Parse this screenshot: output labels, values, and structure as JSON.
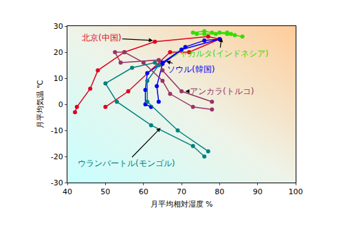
{
  "chart_data": {
    "type": "line",
    "x_label": "月平均相対湿度 %",
    "y_label": "月平均気温 ℃",
    "xlim": [
      40,
      100
    ],
    "xticks": [
      40,
      50,
      60,
      70,
      80,
      90,
      100
    ],
    "ylim": [
      -30,
      30
    ],
    "yticks": [
      -30,
      -20,
      -10,
      0,
      10,
      20,
      30
    ],
    "grid": false,
    "marker": "circle",
    "line_style": "solid",
    "series": [
      {
        "name": "北京(中国)",
        "color": "#e0001a",
        "x": [
          42,
          42.5,
          46,
          48,
          55,
          63,
          77,
          80,
          72,
          67,
          56,
          50
        ],
        "values": [
          -3,
          -1,
          6,
          13,
          20,
          24,
          26,
          25,
          20,
          20,
          5,
          -1
        ]
      },
      {
        "name": "ジャカルタ(インドネシア)",
        "color": "#33dd00",
        "x": [
          86,
          84,
          83,
          82,
          80,
          79,
          76,
          74,
          73,
          76,
          78,
          82
        ],
        "values": [
          26,
          26.5,
          27,
          27.5,
          27.5,
          27,
          27,
          27,
          27.5,
          28,
          27.5,
          27
        ]
      },
      {
        "name": "ソウル(韓国)",
        "color": "#0000ee",
        "x": [
          62,
          60.5,
          60.5,
          61,
          65,
          70,
          80,
          76,
          71,
          65,
          63.5,
          64
        ],
        "values": [
          -1,
          0,
          5.5,
          12,
          16,
          21,
          25,
          24.5,
          22,
          15.5,
          7,
          1
        ]
      },
      {
        "name": "アンカラ(トルコ)",
        "color": "#993366",
        "x": [
          78,
          73,
          67,
          65,
          60,
          55,
          52.5,
          54,
          64,
          65,
          70,
          78
        ],
        "values": [
          -2,
          -1,
          4,
          9,
          16,
          20,
          20,
          16,
          17,
          13,
          5,
          1
        ]
      },
      {
        "name": "ウランバートル(モンゴル)",
        "color": "#008080",
        "x": [
          76,
          73,
          62,
          53,
          50,
          57,
          63,
          64,
          61,
          61,
          69,
          77
        ],
        "values": [
          -20,
          -16,
          -8,
          1,
          8,
          14,
          16,
          15,
          9,
          1,
          -10,
          -18
        ]
      }
    ]
  }
}
